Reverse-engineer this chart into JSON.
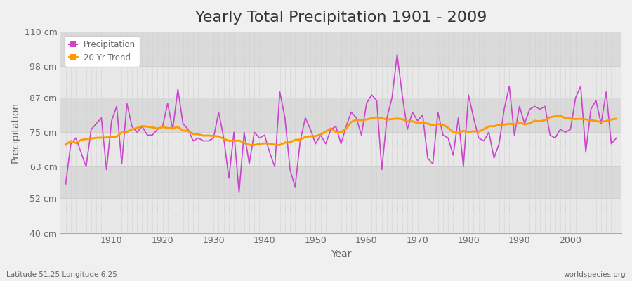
{
  "title": "Yearly Total Precipitation 1901 - 2009",
  "xlabel": "Year",
  "ylabel": "Precipitation",
  "subtitle": "Latitude 51.25 Longitude 6.25",
  "watermark": "worldspecies.org",
  "years": [
    1901,
    1902,
    1903,
    1904,
    1905,
    1906,
    1907,
    1908,
    1909,
    1910,
    1911,
    1912,
    1913,
    1914,
    1915,
    1916,
    1917,
    1918,
    1919,
    1920,
    1921,
    1922,
    1923,
    1924,
    1925,
    1926,
    1927,
    1928,
    1929,
    1930,
    1931,
    1932,
    1933,
    1934,
    1935,
    1936,
    1937,
    1938,
    1939,
    1940,
    1941,
    1942,
    1943,
    1944,
    1945,
    1946,
    1947,
    1948,
    1949,
    1950,
    1951,
    1952,
    1953,
    1954,
    1955,
    1956,
    1957,
    1958,
    1959,
    1960,
    1961,
    1962,
    1963,
    1964,
    1965,
    1966,
    1967,
    1968,
    1969,
    1970,
    1971,
    1972,
    1973,
    1974,
    1975,
    1976,
    1977,
    1978,
    1979,
    1980,
    1981,
    1982,
    1983,
    1984,
    1985,
    1986,
    1987,
    1988,
    1989,
    1990,
    1991,
    1992,
    1993,
    1994,
    1995,
    1996,
    1997,
    1998,
    1999,
    2000,
    2001,
    2002,
    2003,
    2004,
    2005,
    2006,
    2007,
    2008,
    2009
  ],
  "precipitation": [
    57,
    71,
    73,
    68,
    63,
    76,
    78,
    80,
    62,
    79,
    84,
    64,
    85,
    77,
    75,
    77,
    74,
    74,
    76,
    77,
    85,
    76,
    90,
    78,
    76,
    72,
    73,
    72,
    72,
    73,
    82,
    73,
    59,
    75,
    54,
    75,
    64,
    75,
    73,
    74,
    68,
    63,
    89,
    80,
    62,
    56,
    72,
    80,
    76,
    71,
    74,
    71,
    76,
    77,
    71,
    77,
    82,
    80,
    74,
    85,
    88,
    86,
    62,
    80,
    87,
    102,
    88,
    76,
    82,
    79,
    81,
    66,
    64,
    82,
    74,
    73,
    67,
    80,
    63,
    88,
    80,
    73,
    72,
    75,
    66,
    71,
    83,
    91,
    74,
    84,
    78,
    83,
    84,
    83,
    84,
    74,
    73,
    76,
    75,
    76,
    87,
    91,
    68,
    83,
    86,
    78,
    89,
    71,
    73
  ],
  "ylim": [
    40,
    110
  ],
  "ytick_labels": [
    "40 cm",
    "52 cm",
    "63 cm",
    "75 cm",
    "87 cm",
    "98 cm",
    "110 cm"
  ],
  "ytick_values": [
    40,
    52,
    63,
    75,
    87,
    98,
    110
  ],
  "line_color": "#cc44cc",
  "trend_color": "#ff9900",
  "bg_color": "#f0f0f0",
  "plot_bg_color": "#e8e8e8",
  "plot_bg_alt_color": "#dadada",
  "grid_color": "#cccccc",
  "title_fontsize": 16,
  "axis_label_fontsize": 10,
  "tick_fontsize": 9,
  "text_color": "#666666"
}
